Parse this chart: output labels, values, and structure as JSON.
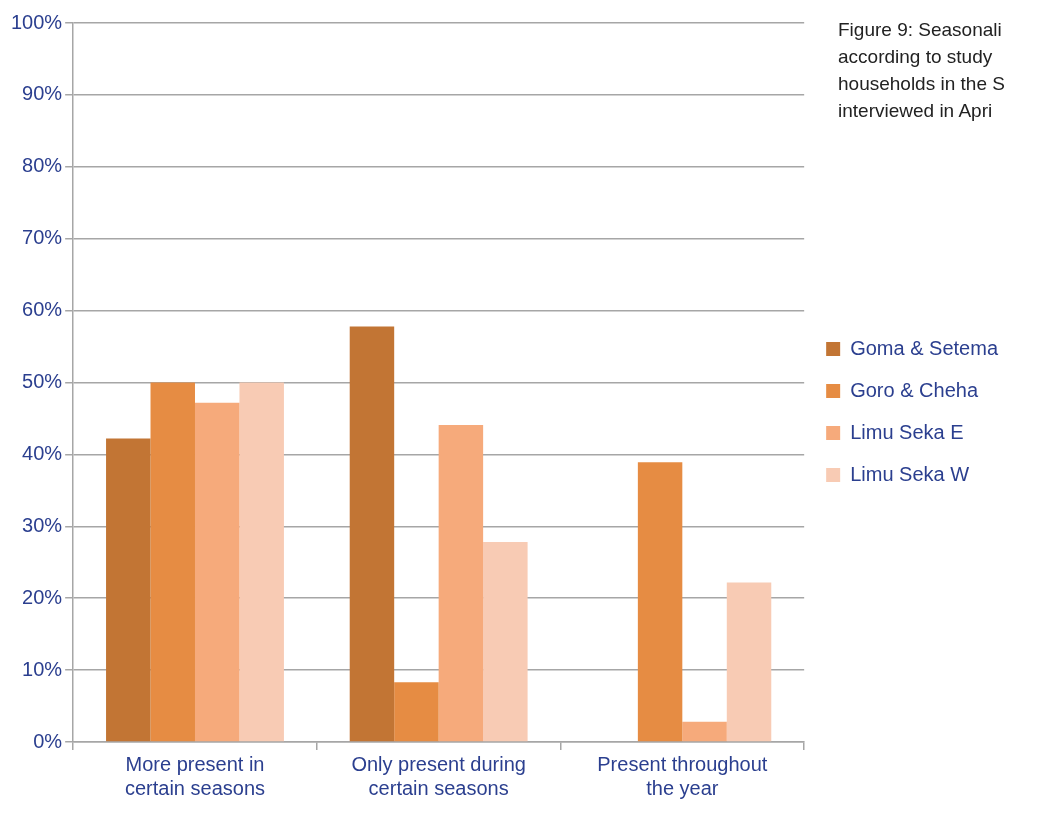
{
  "chart_data": {
    "type": "bar",
    "categories": [
      "More present in certain seasons",
      "Only present during certain seasons",
      "Present throughout the year"
    ],
    "series": [
      {
        "name": "Goma & Setema",
        "color": "#c27534",
        "values": [
          42.2,
          57.8,
          0
        ]
      },
      {
        "name": "Goro & Cheha",
        "color": "#e68c43",
        "values": [
          50,
          8.3,
          38.9
        ]
      },
      {
        "name": "Limu Seka E",
        "color": "#f6aa7b",
        "values": [
          47.2,
          44.1,
          2.8
        ]
      },
      {
        "name": "Limu Seka W",
        "color": "#f8cbb4",
        "values": [
          50,
          27.8,
          22.2
        ]
      }
    ],
    "ylim": [
      0,
      100
    ],
    "yticks": [
      {
        "value": 0,
        "label": "0%"
      },
      {
        "value": 10,
        "label": "10%"
      },
      {
        "value": 20,
        "label": "20%"
      },
      {
        "value": 30,
        "label": "30%"
      },
      {
        "value": 40,
        "label": "40%"
      },
      {
        "value": 50,
        "label": "50%"
      },
      {
        "value": 60,
        "label": "60%"
      },
      {
        "value": 70,
        "label": "70%"
      },
      {
        "value": 80,
        "label": "80%"
      },
      {
        "value": 90,
        "label": "90%"
      },
      {
        "value": 100,
        "label": "100%"
      }
    ],
    "grid": "y",
    "legend": "right",
    "annotations": [
      "Figure 9: Seasonali according to study households in the S interviewed in Apri"
    ]
  }
}
